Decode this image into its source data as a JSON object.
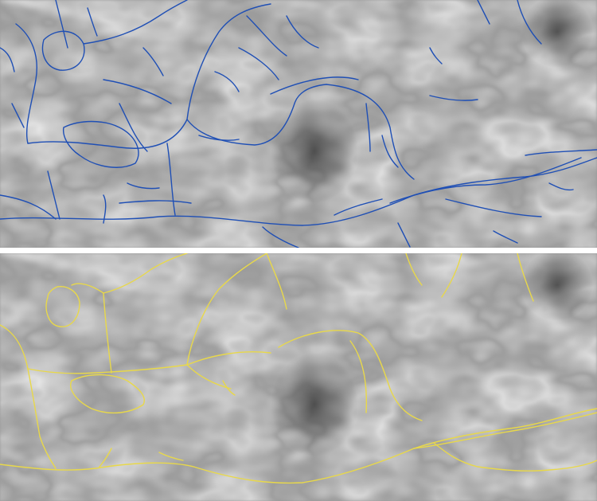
{
  "figure": {
    "panels": [
      {
        "id": "top",
        "overlay": "dense-ridge-network",
        "line_color": "#1f4fb5"
      },
      {
        "id": "bottom",
        "overlay": "simplified-ridge-network",
        "line_color": "#e8d84a"
      }
    ],
    "background": {
      "light": "#d8d8d8",
      "mid": "#a8a8a8",
      "dark": "#4a4a4a"
    }
  }
}
